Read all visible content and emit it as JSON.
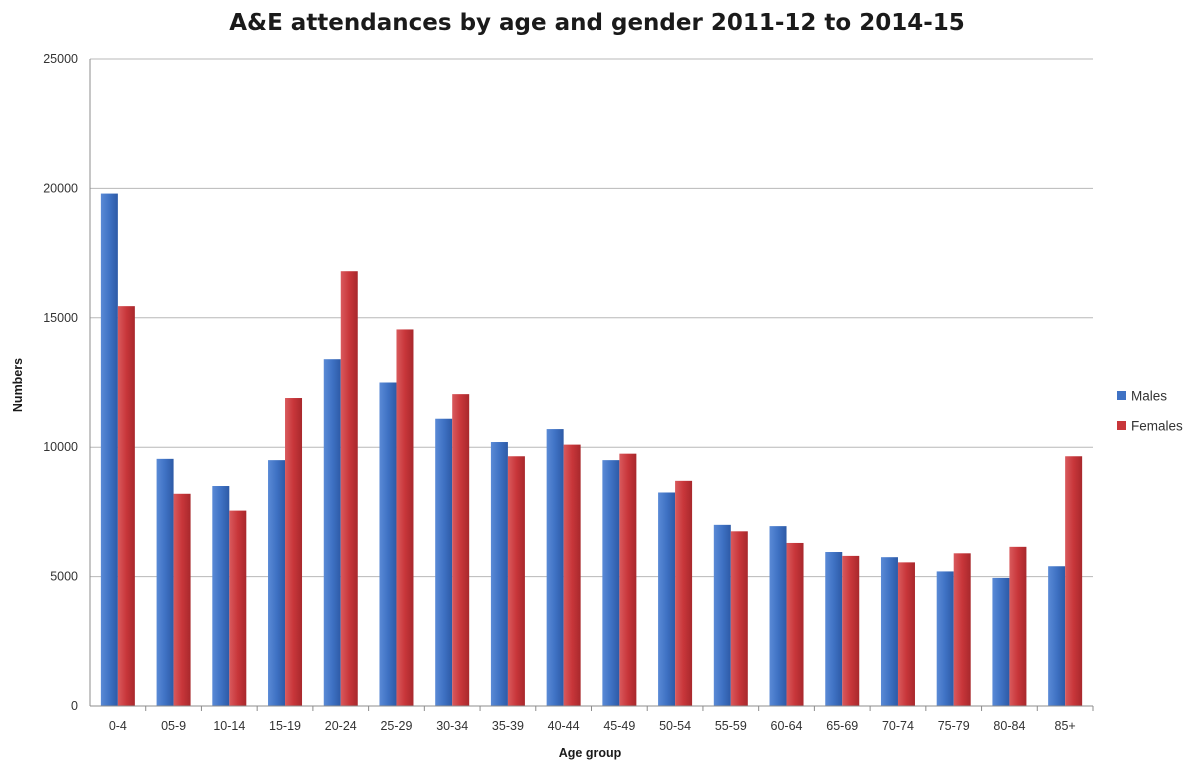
{
  "chart_data": {
    "type": "bar",
    "title": "A&E attendances by age and gender 2011-12 to 2014-15",
    "xlabel": "Age group",
    "ylabel": "Numbers",
    "ylim": [
      0,
      25000
    ],
    "yticks": [
      "0",
      "5000",
      "10000",
      "15000",
      "20000",
      "25000"
    ],
    "grid": true,
    "legend_position": "right",
    "categories": [
      "0-4",
      "05-9",
      "10-14",
      "15-19",
      "20-24",
      "25-29",
      "30-34",
      "35-39",
      "40-44",
      "45-49",
      "50-54",
      "55-59",
      "60-64",
      "65-69",
      "70-74",
      "75-79",
      "80-84",
      "85+"
    ],
    "series": [
      {
        "name": "Males",
        "color": "#3f72c4",
        "values": [
          19800,
          9550,
          8500,
          9500,
          13400,
          12500,
          11100,
          10200,
          10700,
          9500,
          8250,
          7000,
          6950,
          5950,
          5750,
          5200,
          4950,
          5400
        ]
      },
      {
        "name": "Females",
        "color": "#c8363a",
        "values": [
          15450,
          8200,
          7550,
          11900,
          16800,
          14550,
          12050,
          9650,
          10100,
          9750,
          8700,
          6750,
          6300,
          5800,
          5550,
          5900,
          6150,
          9650
        ]
      }
    ]
  }
}
